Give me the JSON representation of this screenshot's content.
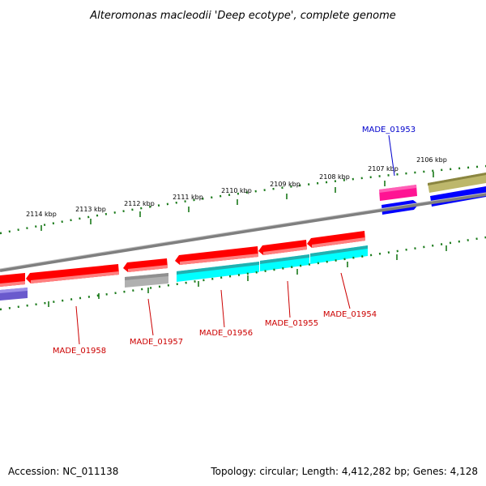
{
  "title": "Alteromonas macleodii 'Deep ecotype', complete genome",
  "footer": {
    "accession": "Accession: NC_011138",
    "summary": "Topology: circular; Length: 4,412,282 bp; Genes: 4,128"
  },
  "ruler_ticks": [
    "2114 kbp",
    "2113 kbp",
    "2112 kbp",
    "2111 kbp",
    "2110 kbp",
    "2109 kbp",
    "2108 kbp",
    "2107 kbp",
    "2106 kbp"
  ],
  "gene_labels": {
    "made_01953": "MADE_01953",
    "made_01954": "MADE_01954",
    "made_01955": "MADE_01955",
    "made_01956": "MADE_01956",
    "made_01957": "MADE_01957",
    "made_01958": "MADE_01958"
  },
  "colors": {
    "backbone": "#7f7f7f",
    "ruler": "#1a7a1a",
    "gene_red": "#ff0000",
    "rna_cyan": "#00ffff",
    "rna_gray": "#b0b0b0",
    "magenta": "#ff1493",
    "blue": "#0000ff",
    "khaki": "#bdb76b",
    "slate": "#6a5acd",
    "label_red": "#cc0000",
    "label_blue": "#0000cc"
  }
}
